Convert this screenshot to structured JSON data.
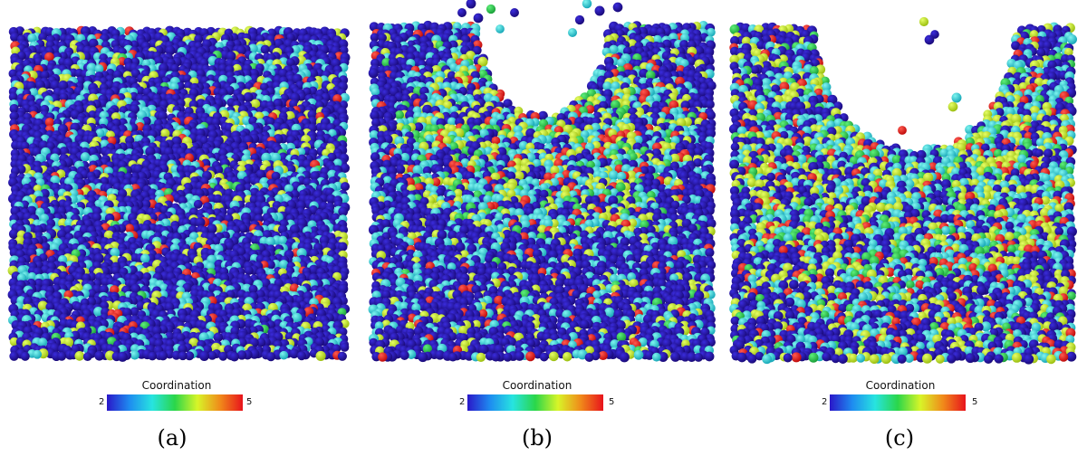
{
  "colorbar_colors": [
    "#2a17c9",
    "#1e8cf0",
    "#27e4e0",
    "#2ad64a",
    "#d8f528",
    "#f08a1a",
    "#e8131c"
  ],
  "panels": [
    {
      "label": "(a)",
      "colorbar": {
        "title": "Coordination",
        "min": "2",
        "max": "5"
      }
    },
    {
      "label": "(b)",
      "colorbar": {
        "title": "Coordination",
        "min": "2",
        "max": "5"
      }
    },
    {
      "label": "(c)",
      "colorbar": {
        "title": "Coordination",
        "min": "2",
        "max": "5"
      }
    }
  ]
}
